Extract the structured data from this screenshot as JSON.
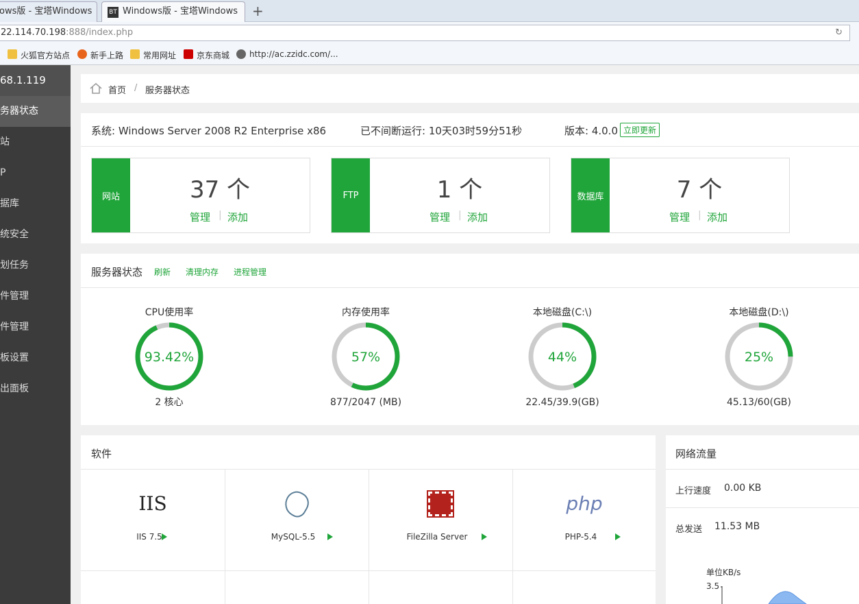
{
  "browser": {
    "tabs": [
      "ows版 - 宝塔Windows",
      "Windows版 - 宝塔Windows"
    ],
    "tab_icon": "BT",
    "host": "22.114.70.198",
    "path": ":888/index.php",
    "bookmarks": [
      "火狐官方站点",
      "新手上路",
      "常用网址",
      "京东商城",
      "http://ac.zzidc.com/..."
    ]
  },
  "sidebar": {
    "ip": "68.1.119",
    "menu": [
      "务器状态",
      "站",
      "P",
      "据库",
      "统安全",
      "划任务",
      "件管理",
      "件管理",
      "板设置",
      "出面板"
    ]
  },
  "breadcrumb": [
    "首页",
    "/",
    "服务器状态"
  ],
  "info": {
    "system": "系统: Windows Server 2008 R2 Enterprise x86",
    "uptime": "已不间断运行: 10天03时59分51秒",
    "version": "版本: 4.0.0",
    "update": "立即更新"
  },
  "cards": [
    {
      "label": "网站",
      "count": "37 个",
      "manage": "管理",
      "sep": "|",
      "add": "添加"
    },
    {
      "label": "FTP",
      "count": "1 个",
      "manage": "管理",
      "sep": "|",
      "add": "添加"
    },
    {
      "label": "数据库",
      "count": "7 个",
      "manage": "管理",
      "sep": "|",
      "add": "添加"
    }
  ],
  "status": {
    "title": "服务器状态",
    "actions": [
      "刷新",
      "清理内存",
      "进程管理"
    ],
    "gauges": [
      {
        "title": "CPU使用率",
        "value": 93.42,
        "value_label": "93.42%",
        "detail": "2 核心"
      },
      {
        "title": "内存使用率",
        "value": 57,
        "value_label": "57%",
        "detail": "877/2047 (MB)"
      },
      {
        "title": "本地磁盘(C:\\)",
        "value": 44,
        "value_label": "44%",
        "detail": "22.45/39.9(GB)"
      },
      {
        "title": "本地磁盘(D:\\)",
        "value": 25,
        "value_label": "25%",
        "detail": "45.13/60(GB)"
      }
    ]
  },
  "software": {
    "title": "软件",
    "items": [
      {
        "logo": "IIS",
        "name": "IIS 7.5"
      },
      {
        "logo": "",
        "name": "MySQL-5.5"
      },
      {
        "logo": "",
        "name": "FileZilla Server"
      },
      {
        "logo": "php",
        "name": "PHP-5.4"
      }
    ]
  },
  "network": {
    "title": "网络流量",
    "up_label": "上行速度",
    "up_value": "0.00 KB",
    "sent_label": "总发送",
    "sent_value": "11.53 MB",
    "unit": "单位KB/s",
    "ytick": "3.5"
  }
}
